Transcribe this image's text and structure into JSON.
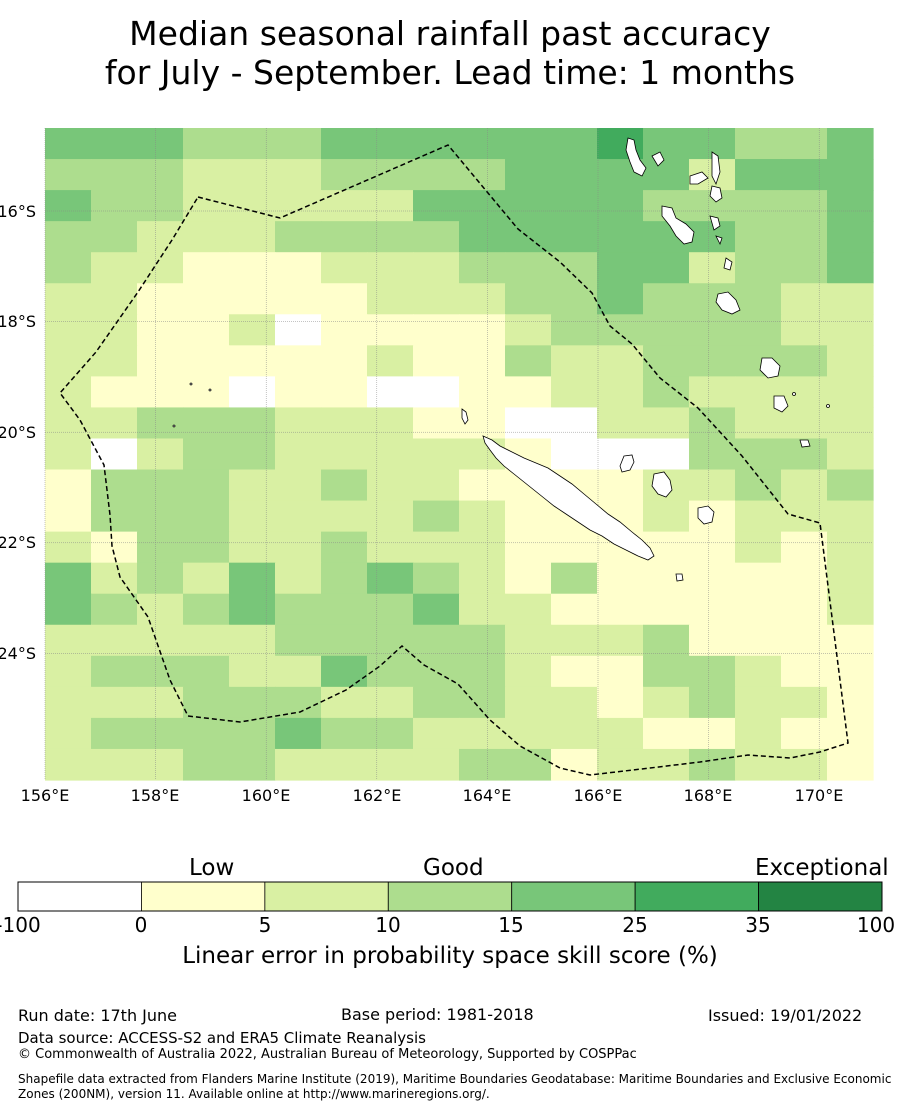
{
  "title": {
    "line1": "Median seasonal rainfall past accuracy",
    "line2": "for July - September. Lead time: 1 months"
  },
  "map": {
    "lat_labels": [
      "16°S",
      "18°S",
      "20°S",
      "22°S",
      "24°S"
    ],
    "lon_labels": [
      "156°E",
      "158°E",
      "160°E",
      "162°E",
      "164°E",
      "166°E",
      "168°E",
      "170°E"
    ],
    "lat_values": [
      -16,
      -18,
      -20,
      -22,
      -24
    ],
    "lon_values": [
      156,
      158,
      160,
      162,
      164,
      166,
      168,
      170
    ],
    "boundary": "dashed",
    "grid": true
  },
  "legend": {
    "categories": {
      "low": "Low",
      "good": "Good",
      "exceptional": "Exceptional"
    },
    "ticks": [
      "-100",
      "0",
      "5",
      "10",
      "15",
      "25",
      "35",
      "100"
    ],
    "colors": [
      "#ffffff",
      "#ffffcc",
      "#d9f0a3",
      "#addd8e",
      "#78c679",
      "#41ab5d",
      "#238443"
    ],
    "label": "Linear error in probability space skill score (%)"
  },
  "footer": {
    "run_date": "Run date: 17th June",
    "base_period": "Base period: 1981-2018",
    "issued": "Issued: 19/01/2022",
    "data_source": "Data source: ACCESS-S2 and ERA5 Climate Reanalysis",
    "copyright": "© Commonwealth of Australia 2022, Australian Bureau of Meteorology, Supported by COSPPac",
    "shapefile": "Shapefile data extracted from Flanders Marine Institute (2019), Maritime Boundaries Geodatabase: Maritime Boundaries and Exclusive Economic Zones (200NM), version 11. Available online at http://www.marineregions.org/."
  }
}
